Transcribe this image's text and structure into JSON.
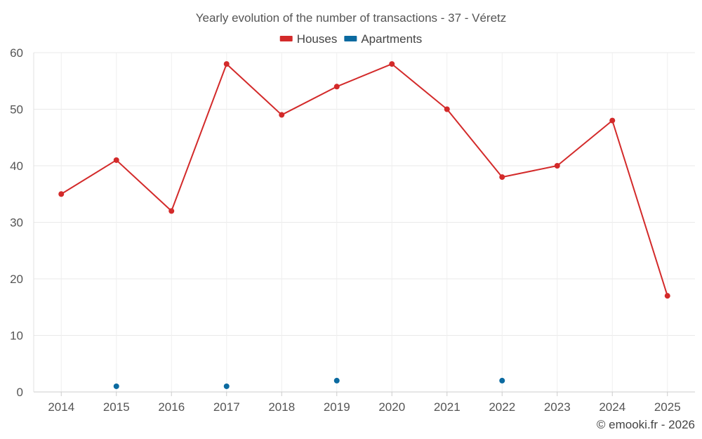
{
  "chart_data": {
    "type": "line",
    "title": "Yearly evolution of the number of transactions - 37 - Véretz",
    "categories": [
      "2014",
      "2015",
      "2016",
      "2017",
      "2018",
      "2019",
      "2020",
      "2021",
      "2022",
      "2023",
      "2024",
      "2025"
    ],
    "ylim": [
      0,
      60
    ],
    "yticks": [
      0,
      10,
      20,
      30,
      40,
      50,
      60
    ],
    "grid": true,
    "legend_position": "top-center",
    "series": [
      {
        "name": "Houses",
        "color": "#d32a2a",
        "values": [
          35,
          41,
          32,
          58,
          49,
          54,
          58,
          50,
          38,
          40,
          48,
          17
        ]
      },
      {
        "name": "Apartments",
        "color": "#0b6aa0",
        "values": [
          null,
          1,
          null,
          1,
          null,
          2,
          null,
          null,
          2,
          null,
          null,
          null
        ]
      }
    ]
  },
  "credit": "© emooki.fr - 2026"
}
